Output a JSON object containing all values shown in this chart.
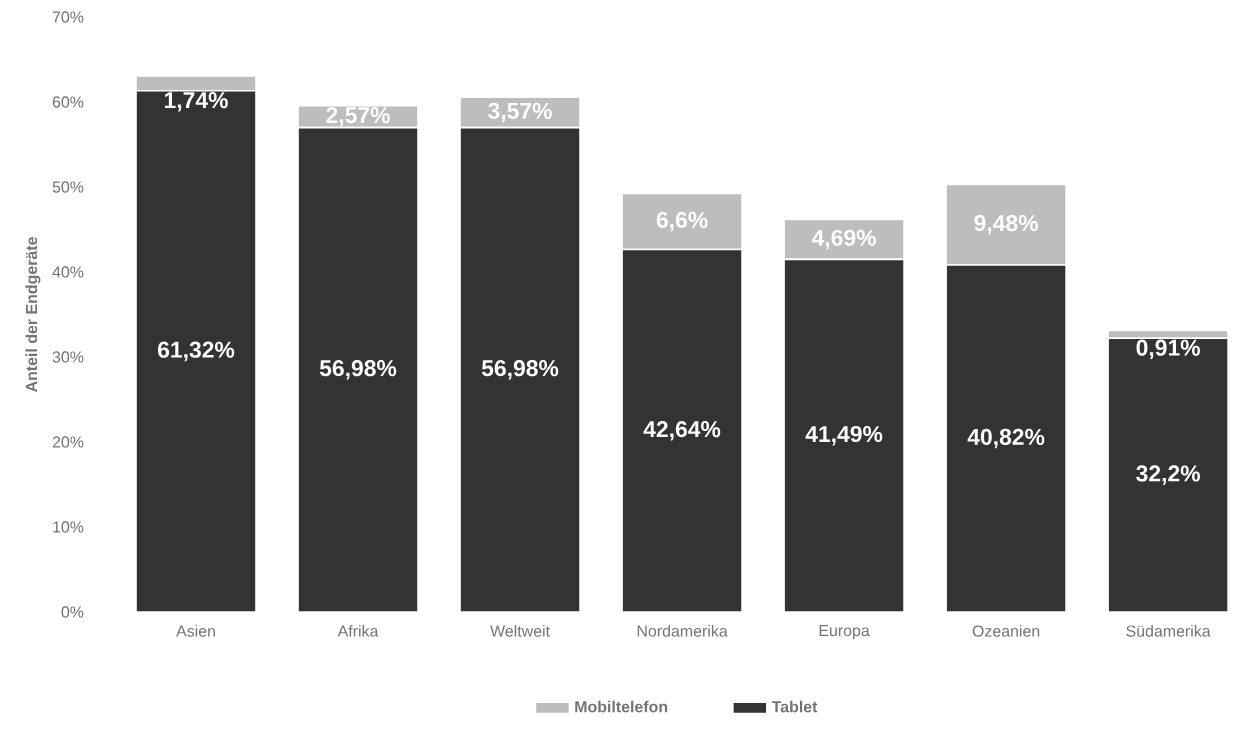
{
  "chart_data": {
    "type": "bar",
    "stacked": true,
    "ylabel": "Anteil der Endgeräte",
    "categories": [
      "Asien",
      "Afrika",
      "Weltweit",
      "Nordamerika",
      "Europa",
      "Ozeanien",
      "Südamerika"
    ],
    "series": [
      {
        "name": "Tablet",
        "color": "#333333",
        "values": [
          61.32,
          56.98,
          56.98,
          42.64,
          41.49,
          40.82,
          32.2
        ],
        "value_labels": [
          "61,32%",
          "56,98%",
          "56,98%",
          "42,64%",
          "41,49%",
          "40,82%",
          "32,2%"
        ]
      },
      {
        "name": "Mobiltelefon",
        "color": "#bdbdbd",
        "values": [
          1.74,
          2.57,
          3.57,
          6.6,
          4.69,
          9.48,
          0.91
        ],
        "value_labels": [
          "1,74%",
          "2,57%",
          "3,57%",
          "6,6%",
          "4,69%",
          "9,48%",
          "0,91%"
        ]
      }
    ],
    "ylim": [
      0,
      70
    ],
    "yticks": [
      {
        "value": 0,
        "label": "0%"
      },
      {
        "value": 10,
        "label": "10%"
      },
      {
        "value": 20,
        "label": "20%"
      },
      {
        "value": 30,
        "label": "30%"
      },
      {
        "value": 40,
        "label": "40%"
      },
      {
        "value": 50,
        "label": "50%"
      },
      {
        "value": 60,
        "label": "60%"
      },
      {
        "value": 70,
        "label": "70%"
      }
    ],
    "grid": false,
    "legend": "bottom"
  }
}
